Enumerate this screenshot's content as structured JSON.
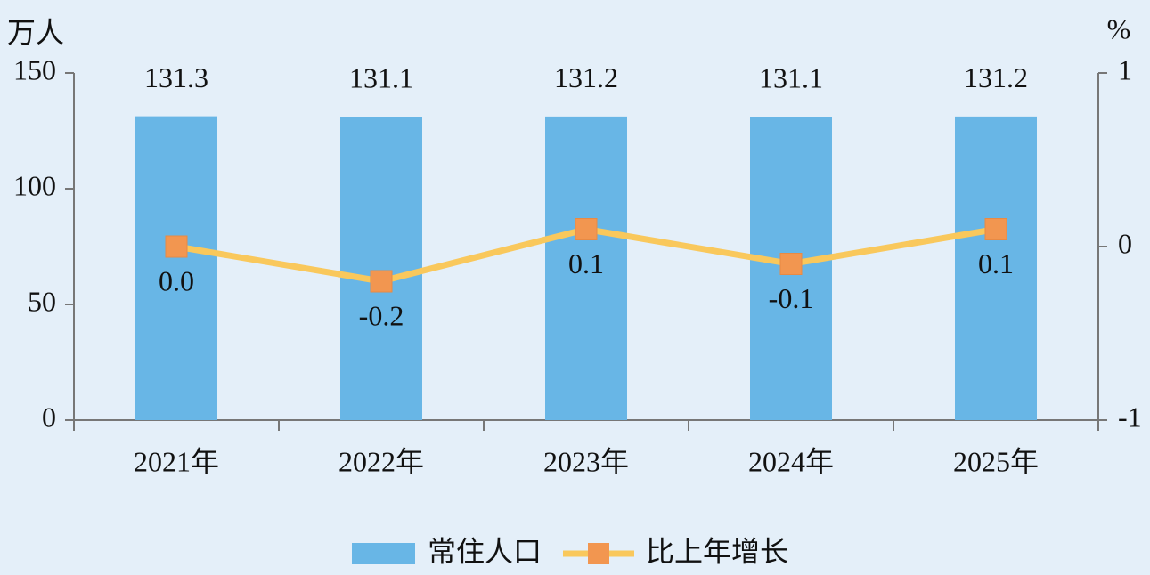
{
  "chart_data": {
    "type": "bar-line",
    "y_label": "万人",
    "y2_label": "%",
    "categories": [
      "2021年",
      "2022年",
      "2023年",
      "2024年",
      "2025年"
    ],
    "series": [
      {
        "name": "常住人口",
        "type": "bar",
        "color": "#68b6e6",
        "values": [
          131.3,
          131.1,
          131.2,
          131.1,
          131.2
        ]
      },
      {
        "name": "比上年增长",
        "type": "line",
        "axis": "y2",
        "color": "#f9c85c",
        "marker_color": "#f29650",
        "values": [
          0.0,
          -0.2,
          0.1,
          -0.1,
          0.1
        ],
        "value_labels": [
          "0.0",
          "-0.2",
          "0.1",
          "-0.1",
          "0.1"
        ]
      }
    ],
    "ylim": [
      0,
      150
    ],
    "yticks": [
      0,
      50,
      100,
      150
    ],
    "y2lim": [
      -1,
      1
    ],
    "y2ticks": [
      -1,
      0,
      1
    ]
  }
}
